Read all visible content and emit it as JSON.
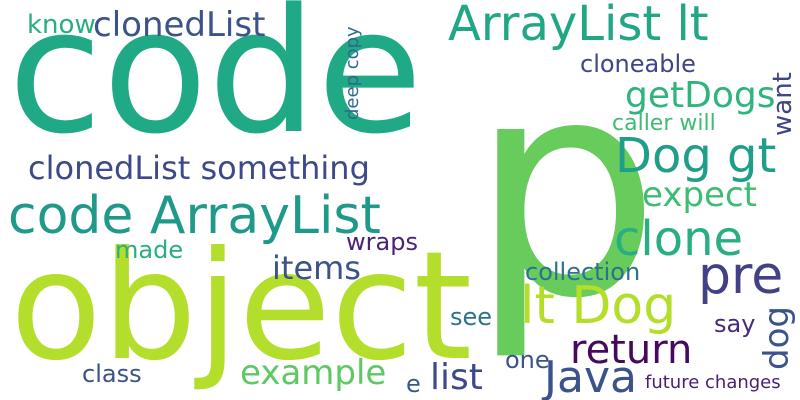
{
  "words": [
    {
      "text": "code",
      "color": "#20a985"
    },
    {
      "text": "p",
      "color": "#67cc5c"
    },
    {
      "text": "object",
      "color": "#b4de2c"
    },
    {
      "text": "code ArrayList",
      "color": "#1f998a"
    },
    {
      "text": "ArrayList lt",
      "color": "#22a785"
    },
    {
      "text": "clonedList",
      "color": "#3b528b"
    },
    {
      "text": "know",
      "color": "#29af7f"
    },
    {
      "text": "cloneable",
      "color": "#404588"
    },
    {
      "text": "getDogs",
      "color": "#2fb47c"
    },
    {
      "text": "Dog gt",
      "color": "#1f9e89"
    },
    {
      "text": "caller will",
      "color": "#3dbc74"
    },
    {
      "text": "want",
      "color": "#404387"
    },
    {
      "text": "deep copy",
      "color": "#31688e"
    },
    {
      "text": "clonedList something",
      "color": "#3e4989"
    },
    {
      "text": "expect",
      "color": "#3dbc74"
    },
    {
      "text": "clone",
      "color": "#28ae80"
    },
    {
      "text": "pre",
      "color": "#424086"
    },
    {
      "text": "wraps",
      "color": "#482475"
    },
    {
      "text": "items",
      "color": "#3b528b"
    },
    {
      "text": "made",
      "color": "#29af7f"
    },
    {
      "text": "lt Dog",
      "color": "#b5de2b"
    },
    {
      "text": "collection",
      "color": "#2c728e"
    },
    {
      "text": "see",
      "color": "#2c728e"
    },
    {
      "text": "return",
      "color": "#460a5d"
    },
    {
      "text": "say",
      "color": "#482878"
    },
    {
      "text": "dog",
      "color": "#3b528b"
    },
    {
      "text": "Java",
      "color": "#3b528b"
    },
    {
      "text": "example",
      "color": "#5ec962"
    },
    {
      "text": "one",
      "color": "#3b528b"
    },
    {
      "text": "class",
      "color": "#3b528b"
    },
    {
      "text": "list",
      "color": "#3e4989"
    },
    {
      "text": "e",
      "color": "#38598c"
    },
    {
      "text": "future changes",
      "color": "#481f70"
    }
  ]
}
